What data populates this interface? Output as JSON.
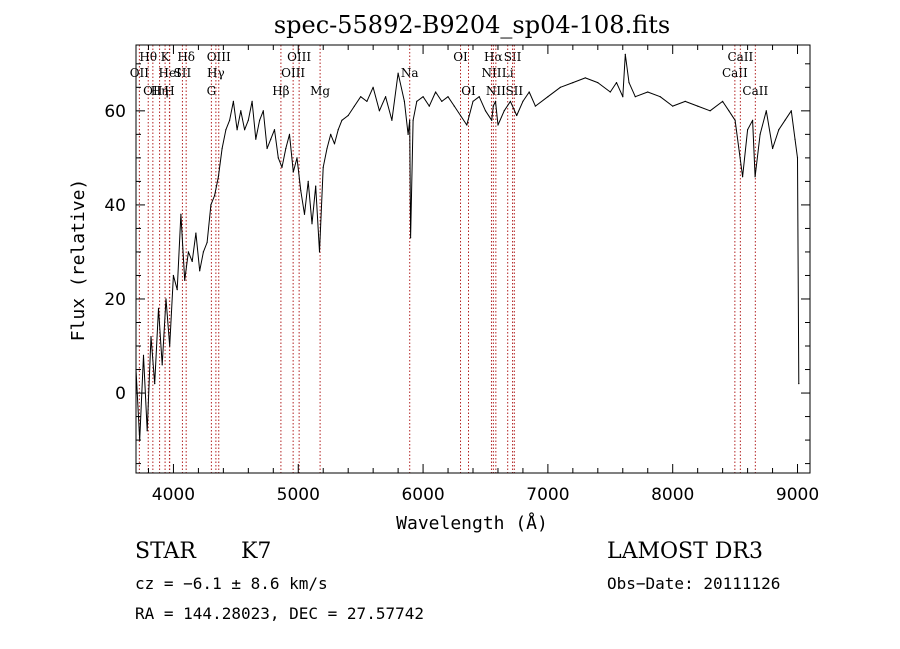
{
  "chart_data": {
    "type": "line",
    "title": "spec-55892-B9204_sp04-108.fits",
    "xlabel": "Wavelength (Å)",
    "ylabel": "Flux (relative)",
    "xlim": [
      3700,
      9100
    ],
    "ylim": [
      -17,
      74
    ],
    "x_ticks": [
      4000,
      5000,
      6000,
      7000,
      8000,
      9000
    ],
    "y_ticks": [
      0,
      20,
      40,
      60
    ],
    "grid": false,
    "series": [
      {
        "x": [
          3700,
          3730,
          3760,
          3790,
          3820,
          3850,
          3880,
          3910,
          3940,
          3970,
          4000,
          4030,
          4060,
          4090,
          4120,
          4150,
          4180,
          4210,
          4240,
          4270,
          4300,
          4330,
          4360,
          4390,
          4420,
          4450,
          4480,
          4510,
          4540,
          4570,
          4600,
          4630,
          4660,
          4690,
          4720,
          4750,
          4780,
          4810,
          4840,
          4870,
          4900,
          4930,
          4960,
          4990,
          5020,
          5050,
          5080,
          5110,
          5140,
          5170,
          5200,
          5230,
          5260,
          5290,
          5320,
          5350,
          5400,
          5450,
          5500,
          5550,
          5600,
          5650,
          5700,
          5750,
          5800,
          5850,
          5880,
          5893,
          5900,
          5920,
          5950,
          6000,
          6050,
          6100,
          6150,
          6200,
          6250,
          6300,
          6350,
          6400,
          6450,
          6500,
          6550,
          6563,
          6580,
          6600,
          6650,
          6700,
          6750,
          6800,
          6850,
          6900,
          7000,
          7100,
          7200,
          7300,
          7400,
          7500,
          7550,
          7600,
          7620,
          7650,
          7700,
          7800,
          7900,
          8000,
          8100,
          8200,
          8300,
          8400,
          8450,
          8500,
          8540,
          8560,
          8600,
          8640,
          8660,
          8700,
          8750,
          8800,
          8850,
          8900,
          8950,
          8980,
          9000,
          9010
        ],
        "values": [
          5,
          -10,
          8,
          -8,
          12,
          2,
          18,
          6,
          20,
          10,
          25,
          22,
          38,
          24,
          30,
          28,
          34,
          26,
          30,
          32,
          40,
          42,
          46,
          52,
          56,
          58,
          62,
          56,
          60,
          56,
          58,
          62,
          54,
          58,
          60,
          52,
          54,
          56,
          50,
          48,
          52,
          55,
          47,
          50,
          43,
          38,
          45,
          36,
          44,
          30,
          48,
          52,
          55,
          53,
          56,
          58,
          59,
          61,
          63,
          62,
          65,
          60,
          63,
          58,
          68,
          62,
          55,
          58,
          33,
          58,
          62,
          63,
          61,
          64,
          62,
          63,
          61,
          59,
          57,
          62,
          63,
          60,
          58,
          61,
          62,
          57,
          60,
          62,
          59,
          62,
          64,
          61,
          63,
          65,
          66,
          67,
          66,
          64,
          66,
          63,
          72,
          66,
          63,
          64,
          63,
          61,
          62,
          61,
          60,
          62,
          60,
          58,
          50,
          46,
          56,
          58,
          46,
          55,
          60,
          52,
          56,
          58,
          60,
          54,
          50,
          2
        ]
      }
    ],
    "lines": [
      {
        "wavelength": 3727,
        "label": "OII",
        "row": 2
      },
      {
        "wavelength": 3798,
        "label": "Hθ",
        "row": 1
      },
      {
        "wavelength": 3835,
        "label": "OII",
        "row": 3
      },
      {
        "wavelength": 3889,
        "label": "Hη",
        "row": 3
      },
      {
        "wavelength": 3933,
        "label": "K",
        "row": 1
      },
      {
        "wavelength": 3970,
        "label": "HeI",
        "row": 2
      },
      {
        "wavelength": 3968,
        "label": "H",
        "row": 3
      },
      {
        "wavelength": 4072,
        "label": "SII",
        "row": 2
      },
      {
        "wavelength": 4102,
        "label": "Hδ",
        "row": 1
      },
      {
        "wavelength": 4304,
        "label": "G",
        "row": 3
      },
      {
        "wavelength": 4340,
        "label": "Hγ",
        "row": 2
      },
      {
        "wavelength": 4363,
        "label": "OIII",
        "row": 1
      },
      {
        "wavelength": 4861,
        "label": "Hβ",
        "row": 3
      },
      {
        "wavelength": 4959,
        "label": "OIII",
        "row": 2
      },
      {
        "wavelength": 5007,
        "label": "OIII",
        "row": 1
      },
      {
        "wavelength": 5175,
        "label": "Mg",
        "row": 3
      },
      {
        "wavelength": 5893,
        "label": "Na",
        "row": 2
      },
      {
        "wavelength": 6300,
        "label": "OI",
        "row": 1
      },
      {
        "wavelength": 6364,
        "label": "OI",
        "row": 3
      },
      {
        "wavelength": 6548,
        "label": "NII",
        "row": 2
      },
      {
        "wavelength": 6563,
        "label": "Hα",
        "row": 1
      },
      {
        "wavelength": 6583,
        "label": "NII",
        "row": 3
      },
      {
        "wavelength": 6678,
        "label": "Li",
        "row": 2
      },
      {
        "wavelength": 6717,
        "label": "SII",
        "row": 1
      },
      {
        "wavelength": 6731,
        "label": "SII",
        "row": 3
      },
      {
        "wavelength": 8498,
        "label": "CaII",
        "row": 2
      },
      {
        "wavelength": 8542,
        "label": "CaII",
        "row": 1
      },
      {
        "wavelength": 8662,
        "label": "CaII",
        "row": 3
      }
    ]
  },
  "info": {
    "object_class": "STAR",
    "subclass": "K7",
    "survey": "LAMOST DR3",
    "redshift": "cz = −6.1 ± 8.6 km/s",
    "obs_date": "Obs−Date: 20111126",
    "coords": "RA = 144.28023, DEC =  27.57742"
  },
  "colors": {
    "spectrum": "#000000",
    "line_markers": "#b22222",
    "axes": "#000000"
  }
}
